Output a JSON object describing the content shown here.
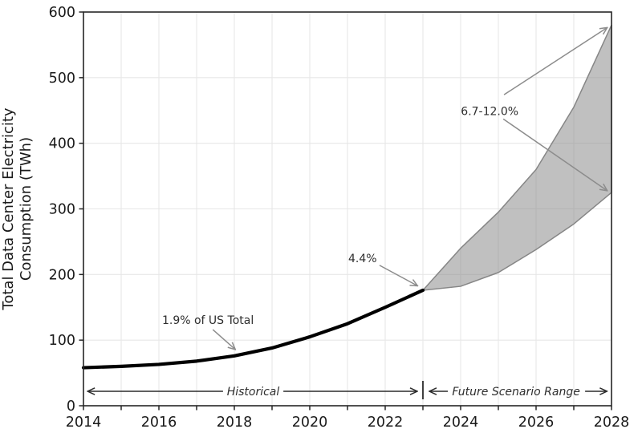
{
  "figure": {
    "background": "#ffffff"
  },
  "colors": {
    "spine": "#262626",
    "grid": "#e7e7e7",
    "tick_label": "#1a1a1a",
    "historical_line": "#000000",
    "band_fill": "#8c8c8c",
    "band_fill_opacity": 0.55,
    "band_edge": "#868686",
    "annotation_text": "#2e2e2e",
    "annotation_arrow": "#8c8c8c",
    "span_arrow": "#2b2b2b"
  },
  "chart_data": {
    "type": "line",
    "title": "",
    "xlabel": "",
    "ylabel_lines": [
      "Total Data Center Electricity",
      "Consumption (TWh)"
    ],
    "xlim": [
      2014,
      2028
    ],
    "ylim": [
      0,
      600
    ],
    "x_major_ticks": [
      2014,
      2016,
      2018,
      2020,
      2022,
      2024,
      2026,
      2028
    ],
    "x_minor_ticks": [
      2015,
      2017,
      2019,
      2021,
      2023,
      2025,
      2027
    ],
    "y_ticks": [
      0,
      100,
      200,
      300,
      400,
      500,
      600
    ],
    "grid": {
      "vertical_every_year": true,
      "horizontal_major_only": true
    },
    "series": [
      {
        "name": "Historical",
        "type": "line",
        "x": [
          2014,
          2015,
          2016,
          2017,
          2018,
          2019,
          2020,
          2021,
          2022,
          2023
        ],
        "y": [
          58,
          60,
          63,
          68,
          76,
          88,
          105,
          125,
          150,
          176
        ]
      },
      {
        "name": "Future Scenario Range",
        "type": "band",
        "x": [
          2023,
          2024,
          2025,
          2026,
          2027,
          2028
        ],
        "upper": [
          176,
          240,
          295,
          360,
          455,
          580
        ],
        "lower": [
          176,
          182,
          203,
          238,
          277,
          325
        ]
      }
    ],
    "annotations": [
      {
        "name": "share-2018",
        "text": "1.9% of US Total",
        "text_x": 2017.3,
        "text_y": 131,
        "arrows": [
          {
            "x1": 2017.43,
            "y1": 116,
            "x2": 2018.02,
            "y2": 86
          }
        ]
      },
      {
        "name": "share-2023",
        "text": "4.4%",
        "text_x": 2021.4,
        "text_y": 225,
        "arrows": [
          {
            "x1": 2021.85,
            "y1": 214,
            "x2": 2022.85,
            "y2": 183
          }
        ]
      },
      {
        "name": "share-2028",
        "text": "6.7-12.0%",
        "text_x": 2024.77,
        "text_y": 449,
        "arrows": [
          {
            "x1": 2025.15,
            "y1": 474,
            "x2": 2027.88,
            "y2": 576
          },
          {
            "x1": 2025.13,
            "y1": 437,
            "x2": 2027.88,
            "y2": 328
          }
        ]
      }
    ],
    "range_spans": [
      {
        "name": "historical-span",
        "label": "Historical",
        "label_x": 2018.5,
        "y": 22,
        "segments": [
          {
            "x1": 2017.7,
            "x2": 2014.12,
            "head": "end"
          },
          {
            "x1": 2019.3,
            "x2": 2022.84,
            "head": "end"
          }
        ]
      },
      {
        "name": "future-span",
        "label": "Future Scenario Range",
        "label_x": 2025.47,
        "y": 22,
        "bar_x": 2023.0,
        "segments": [
          {
            "x1": 2023.66,
            "x2": 2023.18,
            "head": "end"
          },
          {
            "x1": 2027.3,
            "x2": 2027.87,
            "head": "end"
          }
        ]
      }
    ]
  }
}
